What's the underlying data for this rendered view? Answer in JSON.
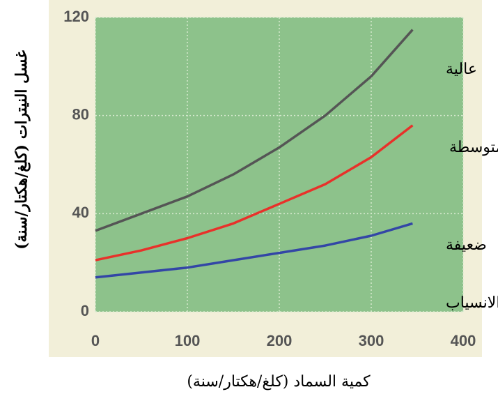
{
  "chart_data": {
    "type": "line",
    "x_label": "كمية السماد (كلغ/هكتار/سنة)",
    "y_label": "غسل النيترات (كلغ/هكتار/سنة)",
    "x": [
      0,
      50,
      100,
      150,
      200,
      250,
      300,
      345
    ],
    "series": [
      {
        "color": "#555555",
        "values": [
          33,
          40,
          47,
          56,
          67,
          80,
          96,
          115
        ]
      },
      {
        "color": "#e8312a",
        "values": [
          21,
          25,
          30,
          36,
          44,
          52,
          63,
          76
        ]
      },
      {
        "color": "#3346a6",
        "values": [
          14,
          16,
          18,
          21,
          24,
          27,
          31,
          36
        ]
      }
    ],
    "annotations": [
      "عالية",
      "متوسطة",
      "ضعيفة",
      "قدرة الانسياب"
    ],
    "xlim": [
      0,
      400
    ],
    "xticks": [
      0,
      100,
      200,
      300,
      400
    ],
    "ylim": [
      0,
      120
    ],
    "yticks": [
      0,
      40,
      80,
      120
    ],
    "grid": true
  }
}
